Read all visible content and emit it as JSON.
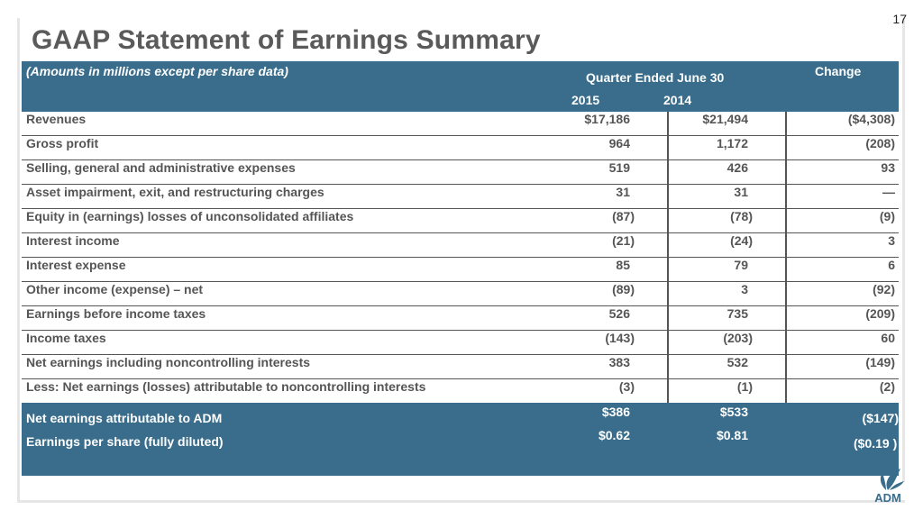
{
  "slide": {
    "page_number": "17",
    "title": "GAAP Statement of Earnings Summary"
  },
  "table": {
    "header": {
      "note": "(Amounts in millions except per share data)",
      "period": "Quarter Ended June 30",
      "year1": "2015",
      "year2": "2014",
      "change": "Change"
    },
    "rows": [
      {
        "label": "Revenues",
        "v2015": "$17,186",
        "v2014": "$21,494",
        "change": "($4,308)"
      },
      {
        "label": "Gross profit",
        "v2015": "964",
        "v2014": "1,172",
        "change": "(208)"
      },
      {
        "label": "Selling, general and administrative expenses",
        "v2015": "519",
        "v2014": "426",
        "change": "93"
      },
      {
        "label": "Asset impairment, exit, and restructuring charges",
        "v2015": "31",
        "v2014": "31",
        "change": "—"
      },
      {
        "label": "Equity in (earnings) losses of unconsolidated affiliates",
        "v2015": "(87)",
        "v2014": "(78)",
        "change": "(9)"
      },
      {
        "label": "Interest income",
        "v2015": "(21)",
        "v2014": "(24)",
        "change": "3"
      },
      {
        "label": "Interest expense",
        "v2015": "85",
        "v2014": "79",
        "change": "6"
      },
      {
        "label": "Other income (expense) – net",
        "v2015": "(89)",
        "v2014": "3",
        "change": "(92)"
      },
      {
        "label": "Earnings before income taxes",
        "v2015": "526",
        "v2014": "735",
        "change": "(209)"
      },
      {
        "label": "Income taxes",
        "v2015": "(143)",
        "v2014": "(203)",
        "change": "60"
      },
      {
        "label": "Net earnings including noncontrolling interests",
        "v2015": "383",
        "v2014": "532",
        "change": "(149)"
      },
      {
        "label": "Less: Net earnings (losses) attributable to noncontrolling interests",
        "v2015": "(3)",
        "v2014": "(1)",
        "change": "(2)"
      }
    ],
    "summary": {
      "net_label": "Net earnings attributable to ADM",
      "net_2015": "$386",
      "net_2014": "$533",
      "net_change": "($147)",
      "eps_label": "Earnings per share (fully diluted)",
      "eps_2015": "$0.62",
      "eps_2014": "$0.81",
      "eps_change": "($0.19 )"
    }
  },
  "logo": {
    "text": "ADM",
    "color": "#396d8b"
  },
  "colors": {
    "header_bg": "#396d8b",
    "title": "#5a5a5a"
  }
}
